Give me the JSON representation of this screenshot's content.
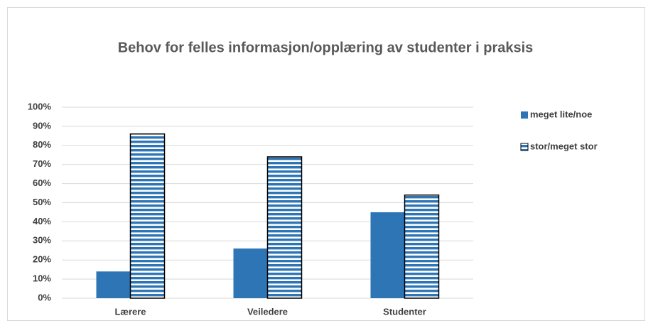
{
  "chart_data": {
    "type": "bar",
    "title": "Behov for felles informasjon/opplæring av studenter i praksis",
    "categories": [
      "Lærere",
      "Veiledere",
      "Studenter"
    ],
    "series": [
      {
        "name": "meget lite/noe",
        "color": "#2e75b6",
        "values": [
          14,
          26,
          45
        ]
      },
      {
        "name": "stor/meget stor",
        "color": "#2e75b6",
        "pattern": "horizontal-stripes",
        "values": [
          86,
          74,
          54
        ]
      }
    ],
    "ylim": [
      0,
      100
    ],
    "yticks": [
      {
        "value": 0,
        "label": "0%"
      },
      {
        "value": 10,
        "label": "10%"
      },
      {
        "value": 20,
        "label": "20%"
      },
      {
        "value": 30,
        "label": "30%"
      },
      {
        "value": 40,
        "label": "40%"
      },
      {
        "value": 50,
        "label": "50%"
      },
      {
        "value": 60,
        "label": "60%"
      },
      {
        "value": 70,
        "label": "70%"
      },
      {
        "value": 80,
        "label": "80%"
      },
      {
        "value": 90,
        "label": "90%"
      },
      {
        "value": 100,
        "label": "100%"
      }
    ],
    "grid": true,
    "legend": "right"
  }
}
